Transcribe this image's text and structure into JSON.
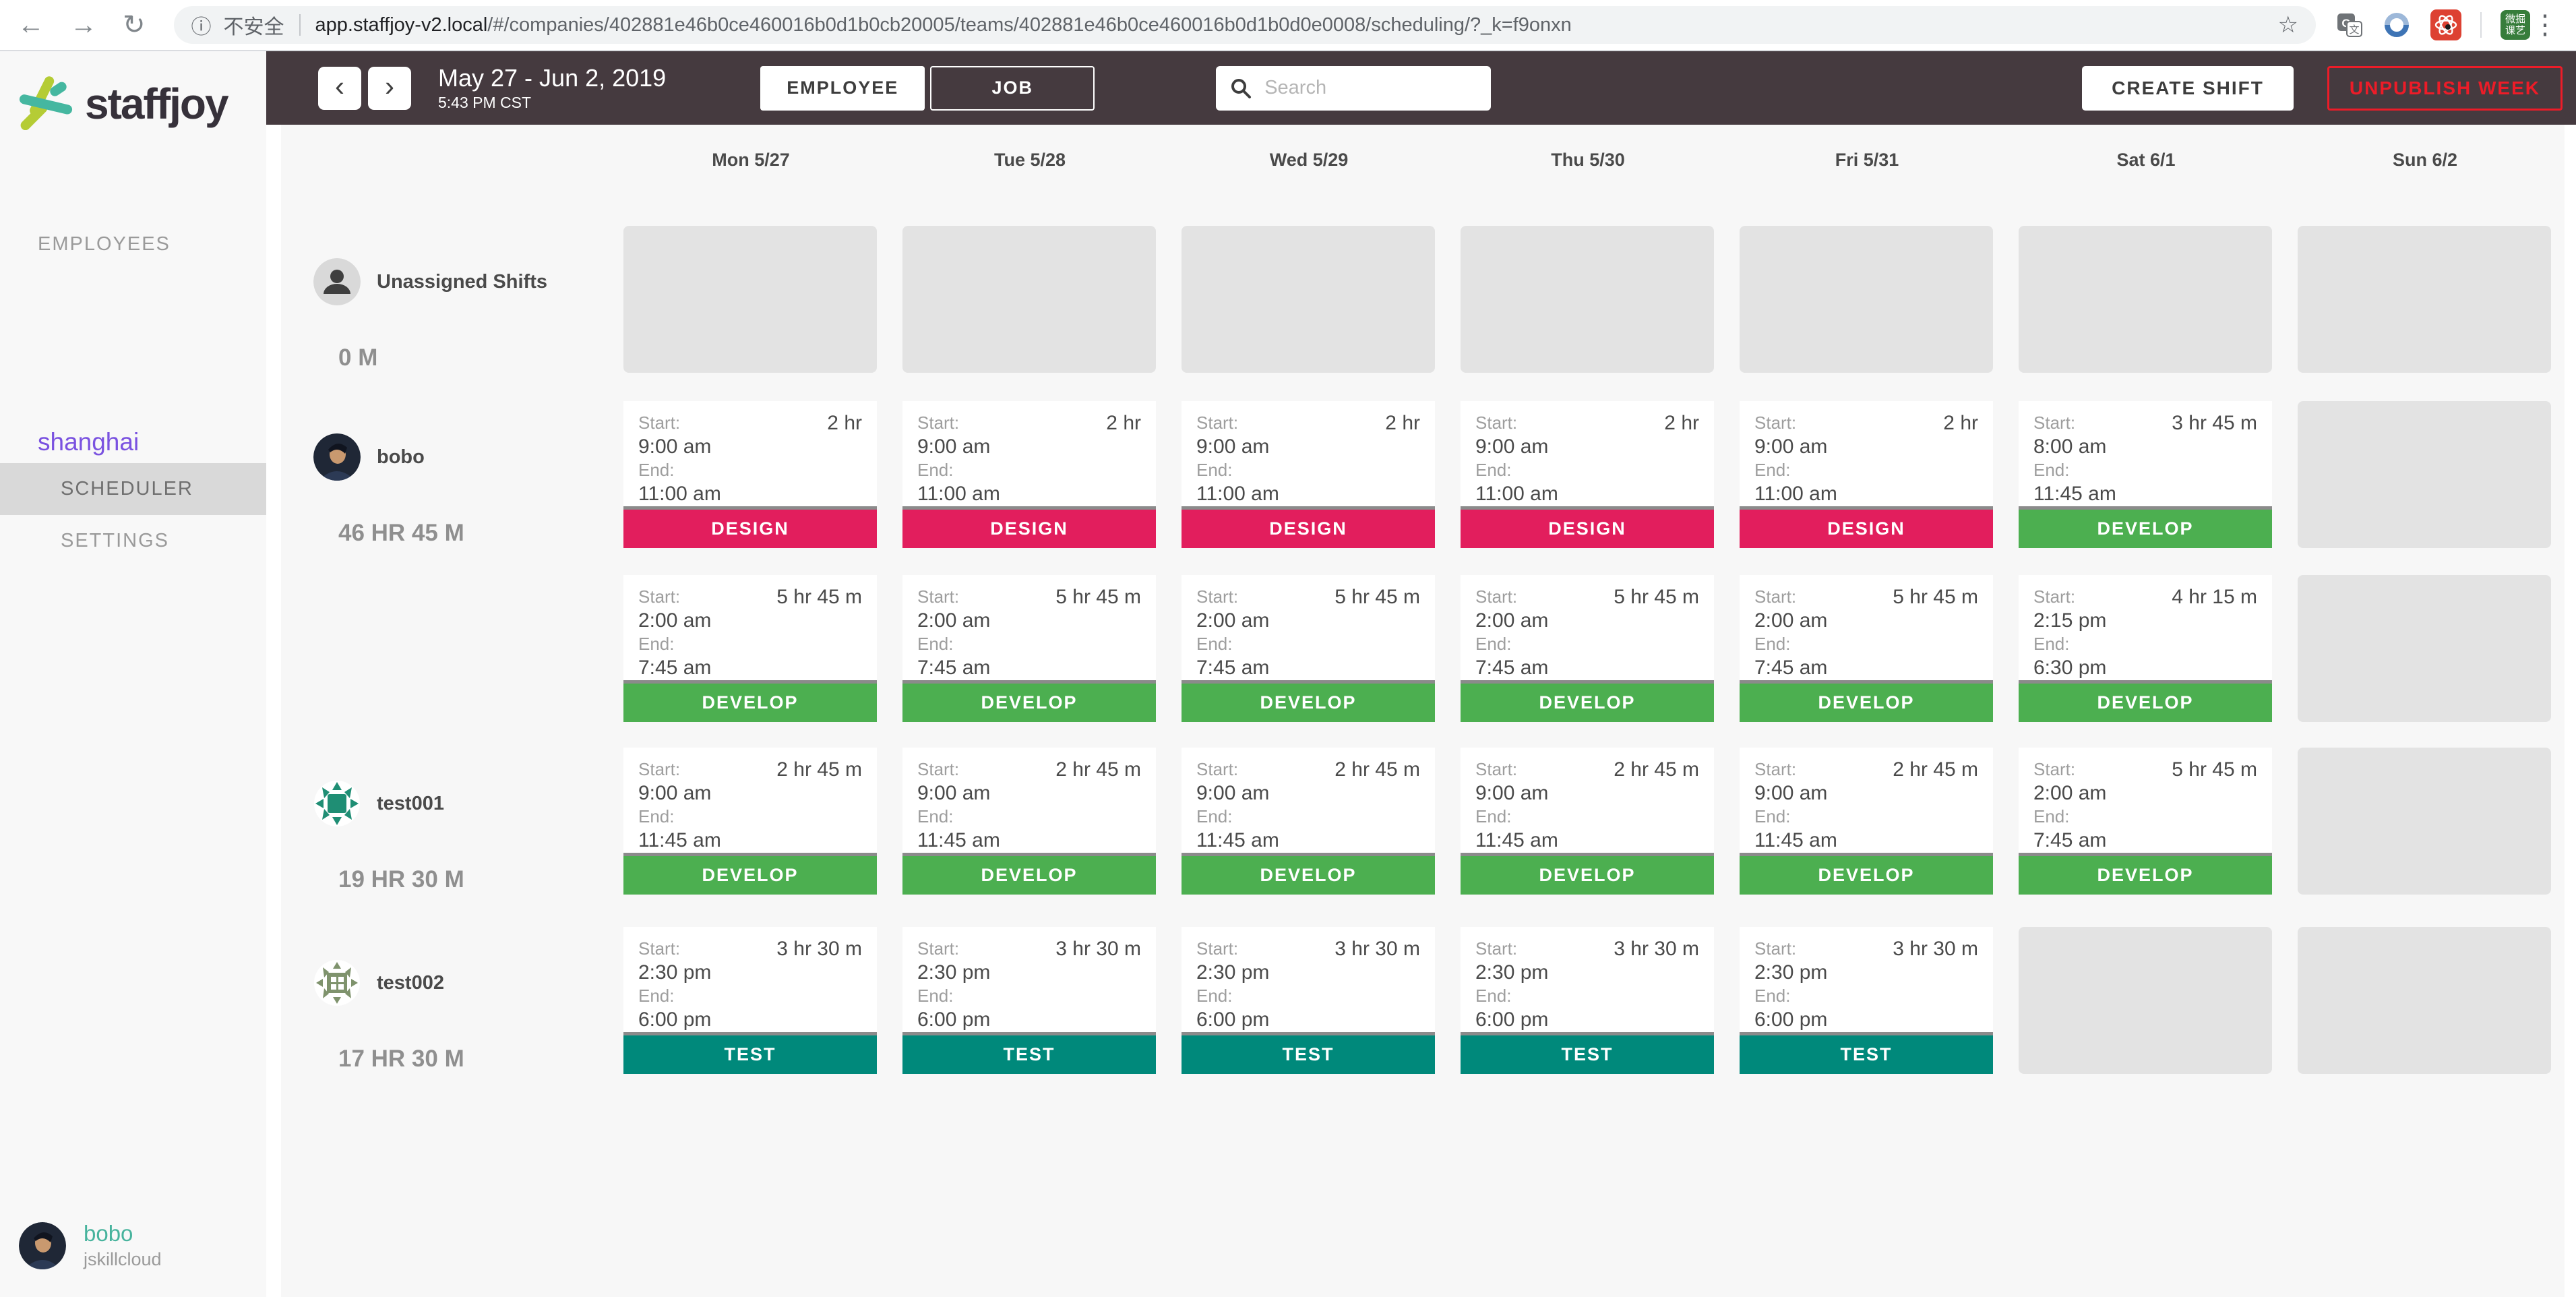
{
  "browser": {
    "back_icon": "←",
    "forward_icon": "→",
    "reload_icon": "↻",
    "info_icon": "ⓘ",
    "security_label": "不安全",
    "url_domain": "app.staffjoy-v2.local",
    "url_path": "/#/companies/402881e46b0ce460016b0d1b0cb20005/teams/402881e46b0ce460016b0d1b0d0e0008/scheduling/?_k=f9onxn",
    "bookmark_star_icon": "☆",
    "extension_badge_lines": [
      "微掘",
      "课艺"
    ],
    "menu_dots_icon": "⋮"
  },
  "sidebar": {
    "logo_text": "staffjoy",
    "employees_label": "EMPLOYEES",
    "team_name": "shanghai",
    "scheduler_label": "SCHEDULER",
    "settings_label": "SETTINGS",
    "user": {
      "name": "bobo",
      "company": "jskillcloud"
    }
  },
  "toolbar": {
    "prev_icon": "‹",
    "next_icon": "›",
    "date_range": "May 27 - Jun 2, 2019",
    "time": "5:43 PM CST",
    "view_toggle": [
      {
        "label": "EMPLOYEE",
        "active": true
      },
      {
        "label": "JOB",
        "active": false
      }
    ],
    "search_placeholder": "Search",
    "create_shift_label": "CREATE SHIFT",
    "unpublish_week_label": "UNPUBLISH WEEK",
    "unpublish_color": "#ec1c28"
  },
  "week": {
    "days": [
      "Mon 5/27",
      "Tue 5/28",
      "Wed 5/29",
      "Thu 5/30",
      "Fri 5/31",
      "Sat 6/1",
      "Sun 6/2"
    ]
  },
  "card_labels": {
    "start": "Start:",
    "end": "End:"
  },
  "jobs": {
    "DESIGN": {
      "color": "#e21e5d"
    },
    "DEVELOP": {
      "color": "#4caf50"
    },
    "TEST": {
      "color": "#00897b"
    }
  },
  "schedule": {
    "rows": [
      {
        "member": {
          "name": "Unassigned Shifts",
          "hours": "0 M",
          "avatar": "unassigned"
        },
        "subrows": [
          [
            null,
            null,
            null,
            null,
            null,
            null,
            null
          ]
        ]
      },
      {
        "member": {
          "name": "bobo",
          "hours": "46 HR 45 M",
          "avatar": "photo"
        },
        "subrows": [
          [
            {
              "start": "9:00 am",
              "end": "11:00 am",
              "duration": "2 hr",
              "job": "DESIGN"
            },
            {
              "start": "9:00 am",
              "end": "11:00 am",
              "duration": "2 hr",
              "job": "DESIGN"
            },
            {
              "start": "9:00 am",
              "end": "11:00 am",
              "duration": "2 hr",
              "job": "DESIGN"
            },
            {
              "start": "9:00 am",
              "end": "11:00 am",
              "duration": "2 hr",
              "job": "DESIGN"
            },
            {
              "start": "9:00 am",
              "end": "11:00 am",
              "duration": "2 hr",
              "job": "DESIGN"
            },
            {
              "start": "8:00 am",
              "end": "11:45 am",
              "duration": "3 hr 45 m",
              "job": "DEVELOP"
            },
            null
          ],
          [
            {
              "start": "2:00 am",
              "end": "7:45 am",
              "duration": "5 hr 45 m",
              "job": "DEVELOP"
            },
            {
              "start": "2:00 am",
              "end": "7:45 am",
              "duration": "5 hr 45 m",
              "job": "DEVELOP"
            },
            {
              "start": "2:00 am",
              "end": "7:45 am",
              "duration": "5 hr 45 m",
              "job": "DEVELOP"
            },
            {
              "start": "2:00 am",
              "end": "7:45 am",
              "duration": "5 hr 45 m",
              "job": "DEVELOP"
            },
            {
              "start": "2:00 am",
              "end": "7:45 am",
              "duration": "5 hr 45 m",
              "job": "DEVELOP"
            },
            {
              "start": "2:15 pm",
              "end": "6:30 pm",
              "duration": "4 hr 15 m",
              "job": "DEVELOP"
            },
            null
          ]
        ]
      },
      {
        "member": {
          "name": "test001",
          "hours": "19 HR 30 M",
          "avatar": "identicon_teal"
        },
        "subrows": [
          [
            {
              "start": "9:00 am",
              "end": "11:45 am",
              "duration": "2 hr 45 m",
              "job": "DEVELOP"
            },
            {
              "start": "9:00 am",
              "end": "11:45 am",
              "duration": "2 hr 45 m",
              "job": "DEVELOP"
            },
            {
              "start": "9:00 am",
              "end": "11:45 am",
              "duration": "2 hr 45 m",
              "job": "DEVELOP"
            },
            {
              "start": "9:00 am",
              "end": "11:45 am",
              "duration": "2 hr 45 m",
              "job": "DEVELOP"
            },
            {
              "start": "9:00 am",
              "end": "11:45 am",
              "duration": "2 hr 45 m",
              "job": "DEVELOP"
            },
            {
              "start": "2:00 am",
              "end": "7:45 am",
              "duration": "5 hr 45 m",
              "job": "DEVELOP"
            },
            null
          ]
        ]
      },
      {
        "member": {
          "name": "test002",
          "hours": "17 HR 30 M",
          "avatar": "identicon_sage"
        },
        "subrows": [
          [
            {
              "start": "2:30 pm",
              "end": "6:00 pm",
              "duration": "3 hr 30 m",
              "job": "TEST"
            },
            {
              "start": "2:30 pm",
              "end": "6:00 pm",
              "duration": "3 hr 30 m",
              "job": "TEST"
            },
            {
              "start": "2:30 pm",
              "end": "6:00 pm",
              "duration": "3 hr 30 m",
              "job": "TEST"
            },
            {
              "start": "2:30 pm",
              "end": "6:00 pm",
              "duration": "3 hr 30 m",
              "job": "TEST"
            },
            {
              "start": "2:30 pm",
              "end": "6:00 pm",
              "duration": "3 hr 30 m",
              "job": "TEST"
            },
            null,
            null
          ]
        ]
      }
    ]
  }
}
